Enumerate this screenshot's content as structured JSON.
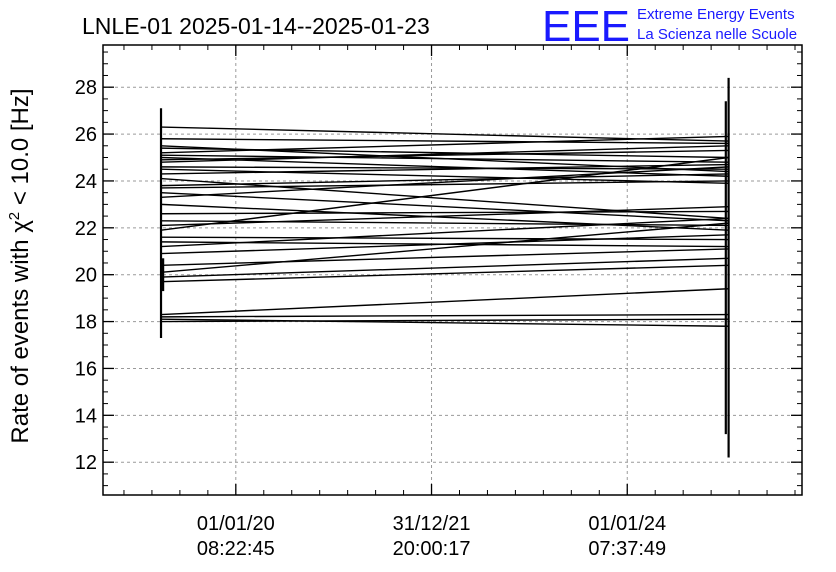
{
  "title": "LNLE-01 2025-01-14--2025-01-23",
  "logo": {
    "mark": "EEE",
    "line1": "Extreme Energy Events",
    "line2": "La Scienza nelle Scuole",
    "color": "#1a1aff"
  },
  "chart_data": {
    "type": "line",
    "title": "LNLE-01 2025-01-14--2025-01-23",
    "ylabel": "Rate of events with χ² < 10.0 [Hz]",
    "ylabel_parts": {
      "before": "Rate of events with χ",
      "sup": "2",
      "after": " < 10.0 [Hz]"
    },
    "xlabel": "",
    "ylim": [
      10.6,
      29.8
    ],
    "yticks": [
      12,
      14,
      16,
      18,
      20,
      22,
      24,
      26,
      28
    ],
    "xlim": [
      0,
      1
    ],
    "xticks": [
      {
        "x": 0.19,
        "date": "01/01/20",
        "time": "08:22:45"
      },
      {
        "x": 0.47,
        "date": "31/12/21",
        "time": "20:00:17"
      },
      {
        "x": 0.75,
        "date": "01/01/24",
        "time": "07:37:49"
      }
    ],
    "x_start": 0.083,
    "x_end": 0.895,
    "grid": true,
    "line_color": "#000000",
    "segments": [
      [
        26.3,
        25.7
      ],
      [
        25.8,
        25.6
      ],
      [
        25.5,
        24.4
      ],
      [
        25.4,
        25.0
      ],
      [
        25.2,
        25.9
      ],
      [
        25.1,
        24.8
      ],
      [
        25.0,
        24.2
      ],
      [
        24.9,
        25.3
      ],
      [
        24.8,
        25.5
      ],
      [
        24.6,
        24.5
      ],
      [
        24.5,
        23.9
      ],
      [
        24.3,
        24.7
      ],
      [
        24.1,
        22.4
      ],
      [
        23.8,
        24.3
      ],
      [
        23.7,
        24.0
      ],
      [
        23.5,
        22.3
      ],
      [
        23.3,
        24.6
      ],
      [
        23.0,
        21.9
      ],
      [
        22.6,
        22.7
      ],
      [
        22.3,
        22.1
      ],
      [
        22.1,
        22.9
      ],
      [
        21.9,
        25.0
      ],
      [
        21.6,
        21.5
      ],
      [
        21.4,
        21.2
      ],
      [
        21.2,
        22.4
      ],
      [
        20.9,
        21.7
      ],
      [
        20.4,
        21.1
      ],
      [
        20.1,
        22.2
      ],
      [
        19.9,
        20.7
      ],
      [
        19.7,
        20.4
      ],
      [
        18.3,
        19.4
      ],
      [
        18.2,
        18.3
      ],
      [
        18.1,
        17.8
      ],
      [
        18.0,
        18.1
      ]
    ],
    "error_bars": [
      {
        "x": 0.083,
        "low": 17.3,
        "high": 27.1
      },
      {
        "x": 0.086,
        "low": 19.3,
        "high": 20.7
      },
      {
        "x": 0.891,
        "low": 13.2,
        "high": 27.4
      },
      {
        "x": 0.895,
        "low": 12.2,
        "high": 28.4
      }
    ]
  }
}
